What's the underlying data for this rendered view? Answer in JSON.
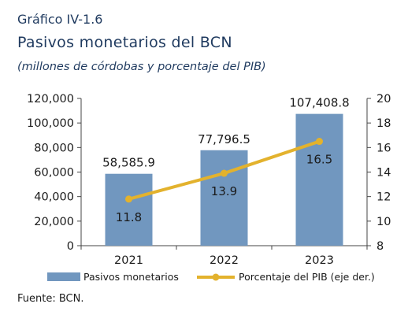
{
  "header": {
    "figure_label": "Gráfico IV-1.6",
    "title": "Pasivos monetarios del BCN",
    "subtitle": "(millones de córdobas y porcentaje del PIB)"
  },
  "footer": {
    "source": "Fuente: BCN."
  },
  "colors": {
    "bar": "#7197bf",
    "line": "#e3b22d",
    "text": "#1a1a1a",
    "title": "#1f3a5f"
  },
  "chart_data": {
    "type": "bar",
    "categories": [
      "2021",
      "2022",
      "2023"
    ],
    "series": [
      {
        "name": "Pasivos monetarios",
        "type": "bar",
        "axis": "left",
        "values": [
          58585.9,
          77796.5,
          107408.8
        ],
        "labels": [
          "58,585.9",
          "77,796.5",
          "107,408.8"
        ]
      },
      {
        "name": "Porcentaje del PIB (eje der.)",
        "type": "line",
        "axis": "right",
        "values": [
          11.8,
          13.9,
          16.5
        ],
        "labels": [
          "11.8",
          "13.9",
          "16.5"
        ]
      }
    ],
    "y_left": {
      "ylim": [
        0,
        120000
      ],
      "ticks": [
        "0",
        "20,000",
        "40,000",
        "60,000",
        "80,000",
        "100,000",
        "120,000"
      ]
    },
    "y_right": {
      "ylim": [
        8,
        20
      ],
      "ticks": [
        "8",
        "10",
        "12",
        "14",
        "16",
        "18",
        "20"
      ]
    },
    "legend": {
      "position": "bottom"
    },
    "grid": false
  }
}
